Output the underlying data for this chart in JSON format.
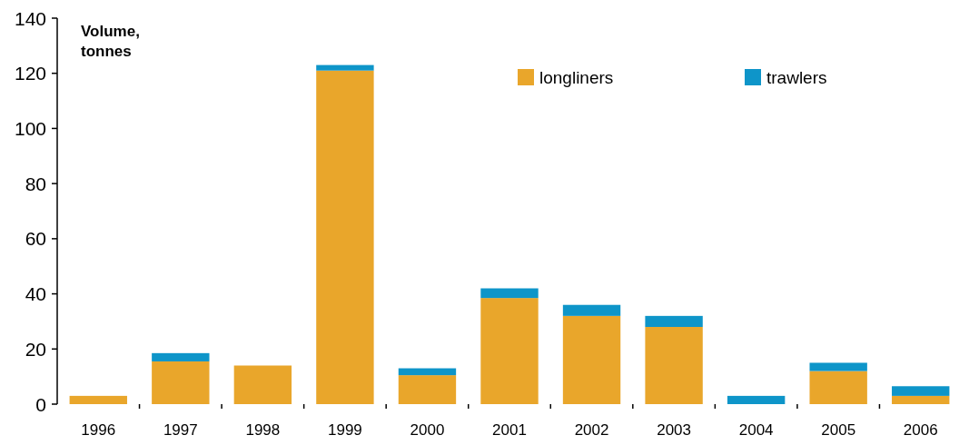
{
  "chart_data": {
    "type": "bar",
    "stacked": true,
    "ylabel": "Volume, tonnes",
    "categories": [
      "1996",
      "1997",
      "1998",
      "1999",
      "2000",
      "2001",
      "2002",
      "2003",
      "2004",
      "2005",
      "2006"
    ],
    "series": [
      {
        "name": "longliners",
        "color": "#e9a62b",
        "values": [
          3,
          15.5,
          14,
          121,
          10.5,
          38.5,
          32,
          28,
          0,
          12,
          3
        ]
      },
      {
        "name": "trawlers",
        "color": "#0e95c9",
        "values": [
          0,
          3,
          0,
          2,
          2.5,
          3.5,
          4,
          4,
          3,
          3,
          3.5
        ]
      }
    ],
    "ylim": [
      0,
      140
    ],
    "yticks": [
      0,
      20,
      40,
      60,
      80,
      100,
      120,
      140
    ],
    "legend": "top right",
    "grid": false
  }
}
